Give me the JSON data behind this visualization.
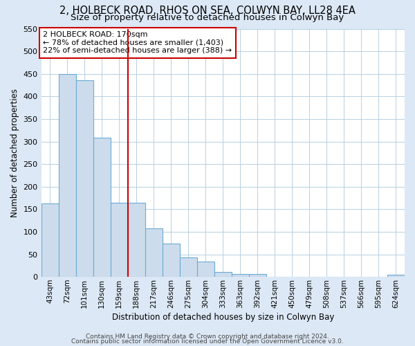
{
  "title1": "2, HOLBECK ROAD, RHOS ON SEA, COLWYN BAY, LL28 4EA",
  "title2": "Size of property relative to detached houses in Colwyn Bay",
  "xlabel": "Distribution of detached houses by size in Colwyn Bay",
  "ylabel": "Number of detached properties",
  "categories": [
    "43sqm",
    "72sqm",
    "101sqm",
    "130sqm",
    "159sqm",
    "188sqm",
    "217sqm",
    "246sqm",
    "275sqm",
    "304sqm",
    "333sqm",
    "363sqm",
    "392sqm",
    "421sqm",
    "450sqm",
    "479sqm",
    "508sqm",
    "537sqm",
    "566sqm",
    "595sqm",
    "624sqm"
  ],
  "values": [
    163,
    450,
    435,
    308,
    165,
    165,
    107,
    74,
    43,
    34,
    11,
    7,
    6,
    0,
    0,
    0,
    0,
    0,
    0,
    0,
    5
  ],
  "bar_color": "#cddcec",
  "bar_edge_color": "#6aaad4",
  "vline_x": 4.5,
  "vline_color": "#cc0000",
  "annotation_text": "2 HOLBECK ROAD: 170sqm\n← 78% of detached houses are smaller (1,403)\n22% of semi-detached houses are larger (388) →",
  "annotation_box_color": "#ffffff",
  "annotation_box_edge": "#cc0000",
  "ylim": [
    0,
    550
  ],
  "footer1": "Contains HM Land Registry data © Crown copyright and database right 2024.",
  "footer2": "Contains public sector information licensed under the Open Government Licence v3.0.",
  "fig_bg_color": "#dce8f5",
  "plot_bg_color": "#ffffff",
  "title1_fontsize": 10.5,
  "title2_fontsize": 9.5,
  "grid_color": "#b8cfe0"
}
